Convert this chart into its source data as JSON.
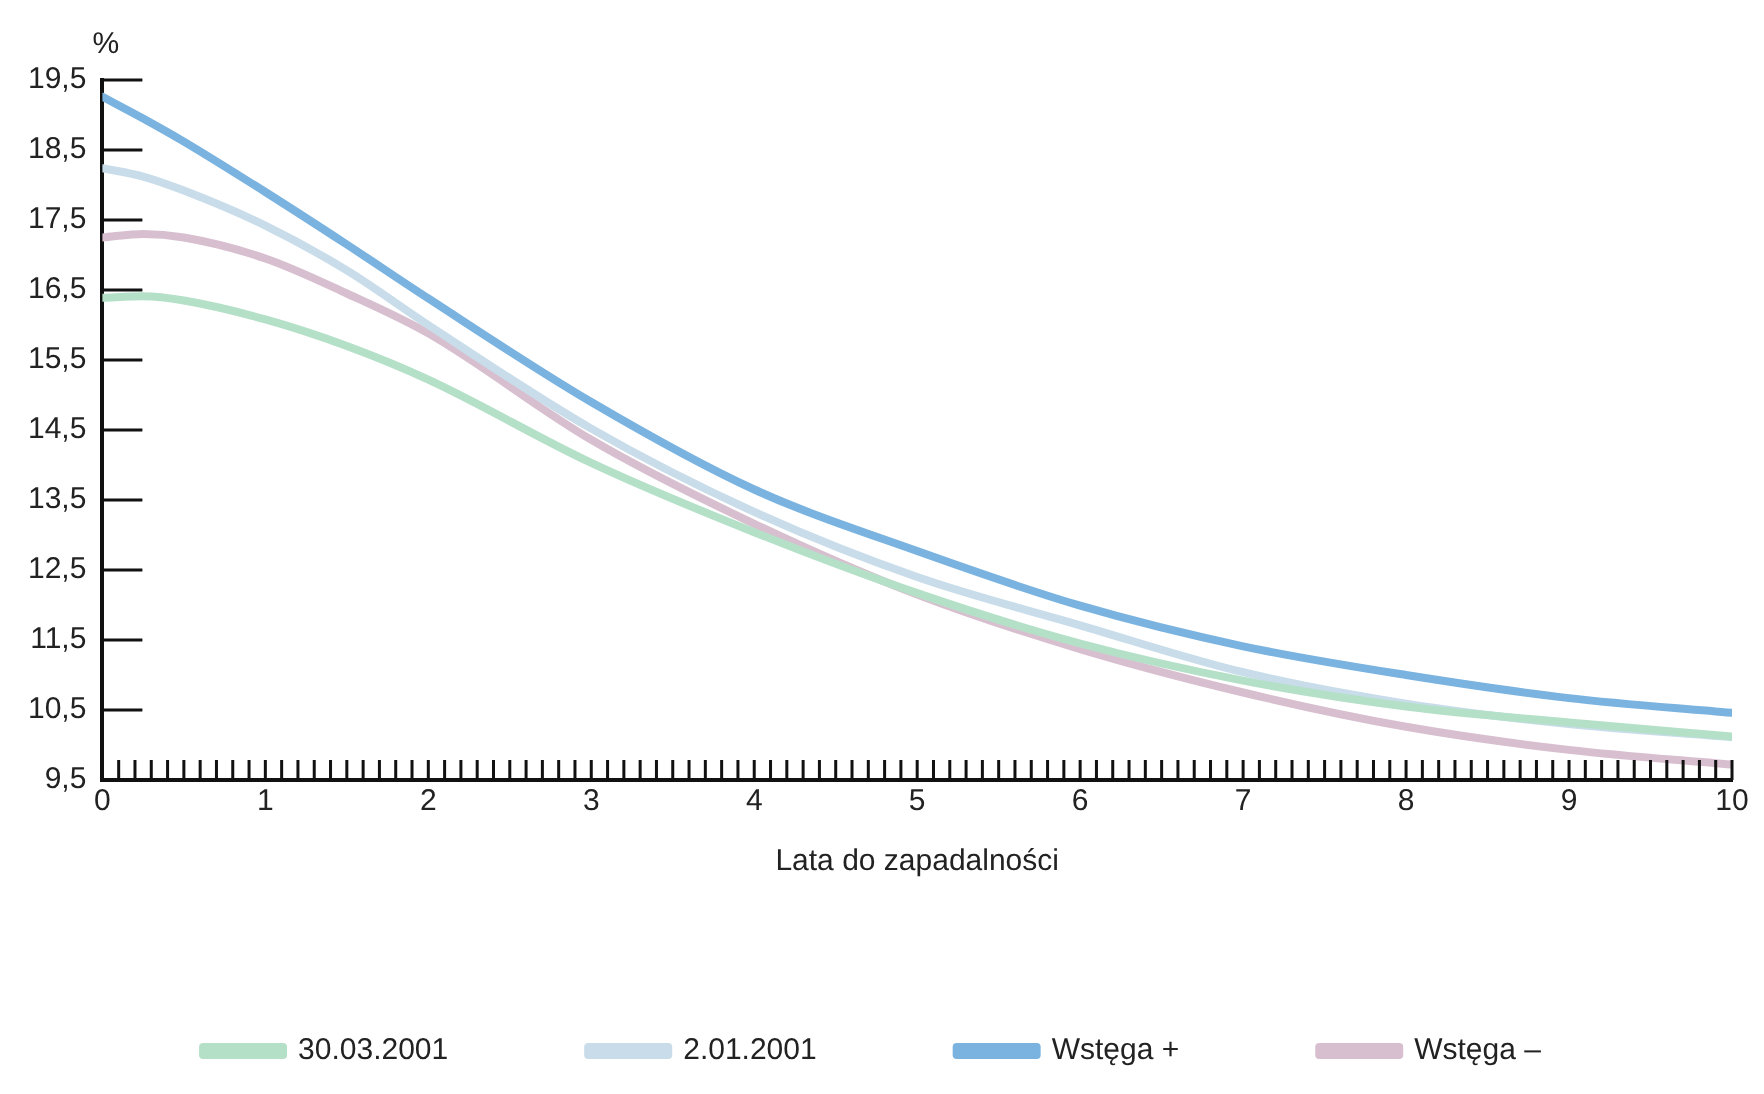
{
  "chart_data": {
    "type": "line",
    "xlabel": "Lata do zapadalności",
    "ylabel": "%",
    "x": [
      0,
      0.25,
      0.5,
      1,
      1.5,
      2,
      3,
      4,
      5,
      6,
      7,
      8,
      9,
      10
    ],
    "series": [
      {
        "name": "30.03.2001",
        "color": "#b5e0c8",
        "values": [
          16.39,
          16.41,
          16.35,
          16.08,
          15.7,
          15.22,
          14.03,
          13.04,
          12.17,
          11.45,
          10.92,
          10.55,
          10.32,
          10.12
        ]
      },
      {
        "name": "2.01.2001",
        "color": "#c8dcea",
        "values": [
          18.24,
          18.12,
          17.92,
          17.42,
          16.78,
          16.0,
          14.52,
          13.33,
          12.4,
          11.71,
          11.04,
          10.59,
          10.3,
          10.11
        ]
      },
      {
        "name": "Wstęga +",
        "color": "#7ab3e0",
        "values": [
          19.26,
          18.95,
          18.62,
          17.9,
          17.15,
          16.38,
          14.9,
          13.65,
          12.77,
          11.99,
          11.41,
          11.0,
          10.67,
          10.46
        ]
      },
      {
        "name": "Wstęga –",
        "color": "#d8bfcf",
        "values": [
          17.25,
          17.3,
          17.25,
          16.95,
          16.45,
          15.88,
          14.36,
          13.16,
          12.15,
          11.37,
          10.75,
          10.26,
          9.93,
          9.72
        ]
      }
    ],
    "xlim": [
      0,
      10
    ],
    "xticks": [
      0,
      {
        "value": 0.1,
        "label": null
      },
      {
        "value": 0.2,
        "label": null
      },
      {
        "value": 0.3,
        "label": null
      },
      {
        "value": 0.4,
        "label": null
      },
      {
        "value": 0.5,
        "label": null
      },
      {
        "value": 0.6,
        "label": null
      },
      {
        "value": 0.7,
        "label": null
      },
      {
        "value": 0.8,
        "label": null
      },
      {
        "value": 0.9,
        "label": null
      },
      1,
      {
        "value": 1.1,
        "label": null
      },
      {
        "value": 1.2,
        "label": null
      },
      {
        "value": 1.3,
        "label": null
      },
      {
        "value": 1.4,
        "label": null
      },
      {
        "value": 1.5,
        "label": null
      },
      {
        "value": 1.6,
        "label": null
      },
      {
        "value": 1.7,
        "label": null
      },
      {
        "value": 1.8,
        "label": null
      },
      {
        "value": 1.9,
        "label": null
      },
      2,
      {
        "value": 2.1,
        "label": null
      },
      {
        "value": 2.2,
        "label": null
      },
      {
        "value": 2.3,
        "label": null
      },
      {
        "value": 2.4,
        "label": null
      },
      {
        "value": 2.5,
        "label": null
      },
      {
        "value": 2.6,
        "label": null
      },
      {
        "value": 2.7,
        "label": null
      },
      {
        "value": 2.8,
        "label": null
      },
      {
        "value": 2.9,
        "label": null
      },
      3,
      {
        "value": 3.1,
        "label": null
      },
      {
        "value": 3.2,
        "label": null
      },
      {
        "value": 3.3,
        "label": null
      },
      {
        "value": 3.4,
        "label": null
      },
      {
        "value": 3.5,
        "label": null
      },
      {
        "value": 3.6,
        "label": null
      },
      {
        "value": 3.7,
        "label": null
      },
      {
        "value": 3.8,
        "label": null
      },
      {
        "value": 3.9,
        "label": null
      },
      4,
      {
        "value": 4.1,
        "label": null
      },
      {
        "value": 4.2,
        "label": null
      },
      {
        "value": 4.3,
        "label": null
      },
      {
        "value": 4.4,
        "label": null
      },
      {
        "value": 4.5,
        "label": null
      },
      {
        "value": 4.6,
        "label": null
      },
      {
        "value": 4.7,
        "label": null
      },
      {
        "value": 4.8,
        "label": null
      },
      {
        "value": 4.9,
        "label": null
      },
      5,
      {
        "value": 5.1,
        "label": null
      },
      {
        "value": 5.2,
        "label": null
      },
      {
        "value": 5.3,
        "label": null
      },
      {
        "value": 5.4,
        "label": null
      },
      {
        "value": 5.5,
        "label": null
      },
      {
        "value": 5.6,
        "label": null
      },
      {
        "value": 5.7,
        "label": null
      },
      {
        "value": 5.8,
        "label": null
      },
      {
        "value": 5.9,
        "label": null
      },
      6,
      {
        "value": 6.1,
        "label": null
      },
      {
        "value": 6.2,
        "label": null
      },
      {
        "value": 6.3,
        "label": null
      },
      {
        "value": 6.4,
        "label": null
      },
      {
        "value": 6.5,
        "label": null
      },
      {
        "value": 6.6,
        "label": null
      },
      {
        "value": 6.7,
        "label": null
      },
      {
        "value": 6.8,
        "label": null
      },
      {
        "value": 6.9,
        "label": null
      },
      7,
      {
        "value": 7.1,
        "label": null
      },
      {
        "value": 7.2,
        "label": null
      },
      {
        "value": 7.3,
        "label": null
      },
      {
        "value": 7.4,
        "label": null
      },
      {
        "value": 7.5,
        "label": null
      },
      {
        "value": 7.6,
        "label": null
      },
      {
        "value": 7.7,
        "label": null
      },
      {
        "value": 7.8,
        "label": null
      },
      {
        "value": 7.9,
        "label": null
      },
      8,
      {
        "value": 8.1,
        "label": null
      },
      {
        "value": 8.2,
        "label": null
      },
      {
        "value": 8.3,
        "label": null
      },
      {
        "value": 8.4,
        "label": null
      },
      {
        "value": 8.5,
        "label": null
      },
      {
        "value": 8.6,
        "label": null
      },
      {
        "value": 8.7,
        "label": null
      },
      {
        "value": 8.8,
        "label": null
      },
      {
        "value": 8.9,
        "label": null
      },
      9,
      {
        "value": 9.1,
        "label": null
      },
      {
        "value": 9.2,
        "label": null
      },
      {
        "value": 9.3,
        "label": null
      },
      {
        "value": 9.4,
        "label": null
      },
      {
        "value": 9.5,
        "label": null
      },
      {
        "value": 9.6,
        "label": null
      },
      {
        "value": 9.7,
        "label": null
      },
      {
        "value": 9.8,
        "label": null
      },
      {
        "value": 9.9,
        "label": null
      },
      10
    ],
    "ylim": [
      9.5,
      19.5
    ],
    "yticks": [
      {
        "value": 9.5,
        "label": "9,5"
      },
      {
        "value": 10.5,
        "label": "10,5"
      },
      {
        "value": 11.5,
        "label": "11,5"
      },
      {
        "value": 12.5,
        "label": "12,5"
      },
      {
        "value": 13.5,
        "label": "13,5"
      },
      {
        "value": 14.5,
        "label": "14,5"
      },
      {
        "value": 15.5,
        "label": "15,5"
      },
      {
        "value": 16.5,
        "label": "16,5"
      },
      {
        "value": 17.5,
        "label": "17,5"
      },
      {
        "value": 18.5,
        "label": "18,5"
      },
      {
        "value": 19.5,
        "label": "19,5"
      }
    ],
    "grid": false,
    "legend": "bottom",
    "marker": "none",
    "line_style": "solid"
  }
}
